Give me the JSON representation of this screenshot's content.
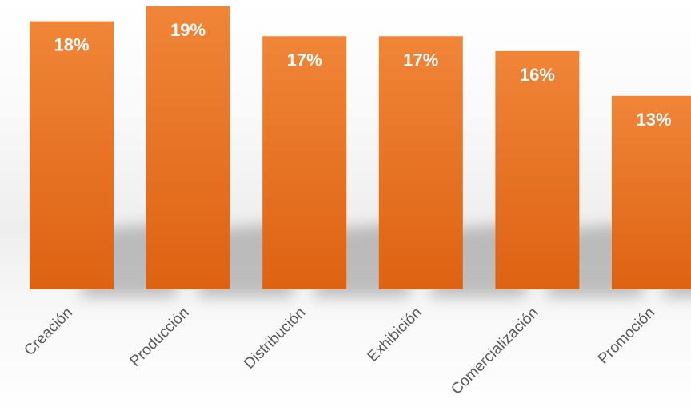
{
  "chart_data": {
    "type": "bar",
    "categories": [
      "Creación",
      "Producción",
      "Distribución",
      "Exhibición",
      "Comercialización",
      "Promoción"
    ],
    "values": [
      18,
      19,
      17,
      17,
      16,
      13
    ],
    "value_labels": [
      "18%",
      "19%",
      "17%",
      "17%",
      "16%",
      "13%"
    ],
    "unit": "%",
    "title": "",
    "xlabel": "",
    "ylabel": "",
    "ylim": [
      0,
      19
    ],
    "grid": false,
    "legend": "none",
    "bar_color_top": "#f08538",
    "bar_color_bottom": "#de6212",
    "label_color": "#595959",
    "value_label_color": "#ffffff"
  }
}
